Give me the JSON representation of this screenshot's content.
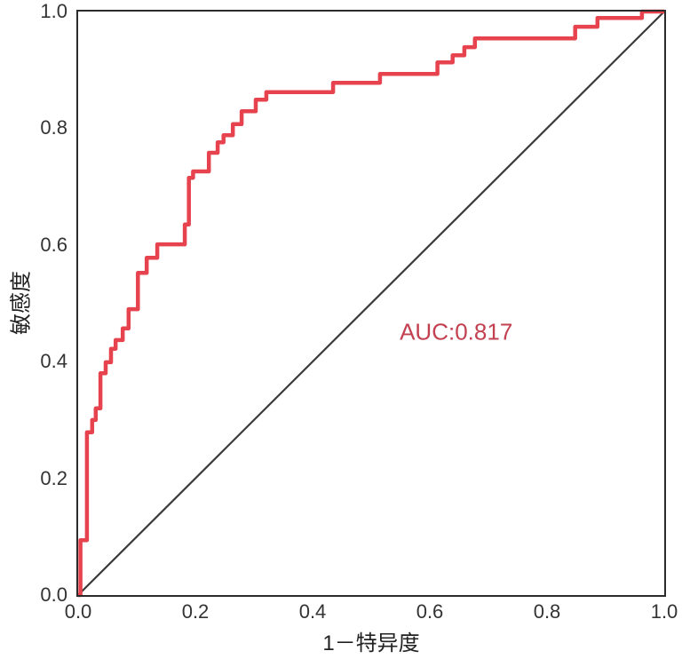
{
  "figure": {
    "background": "#ffffff",
    "spine_color": "#2b2b2b",
    "tick_label_color": "#333333",
    "axis_label_color": "#222222"
  },
  "chart_data": {
    "type": "line",
    "subtype": "roc-curve",
    "title": "",
    "xlabel": "1－特异度",
    "ylabel": "敏感度",
    "xlim": [
      0,
      1
    ],
    "ylim": [
      0,
      1
    ],
    "xticks": [
      "0.0",
      "0.2",
      "0.4",
      "0.6",
      "0.8",
      "1.0"
    ],
    "yticks": [
      "0.0",
      "0.2",
      "0.4",
      "0.6",
      "0.8",
      "1.0"
    ],
    "grid": false,
    "legend_position": "none",
    "auc_value": 0.817,
    "annotation": {
      "text": "AUC:0.817",
      "x": 0.645,
      "y": 0.45,
      "color": "#c2404f"
    },
    "series": [
      {
        "name": "ROC curve",
        "style": "step",
        "color": "#e6434f",
        "linewidth": 4.5,
        "points": [
          [
            0.0,
            0.0
          ],
          [
            0.004,
            0.0
          ],
          [
            0.004,
            0.094
          ],
          [
            0.015,
            0.094
          ],
          [
            0.015,
            0.279
          ],
          [
            0.024,
            0.279
          ],
          [
            0.024,
            0.3
          ],
          [
            0.03,
            0.3
          ],
          [
            0.03,
            0.32
          ],
          [
            0.038,
            0.32
          ],
          [
            0.038,
            0.38
          ],
          [
            0.047,
            0.38
          ],
          [
            0.047,
            0.399
          ],
          [
            0.056,
            0.399
          ],
          [
            0.056,
            0.422
          ],
          [
            0.064,
            0.422
          ],
          [
            0.064,
            0.437
          ],
          [
            0.076,
            0.437
          ],
          [
            0.076,
            0.457
          ],
          [
            0.086,
            0.457
          ],
          [
            0.086,
            0.49
          ],
          [
            0.102,
            0.49
          ],
          [
            0.102,
            0.552
          ],
          [
            0.117,
            0.552
          ],
          [
            0.117,
            0.578
          ],
          [
            0.135,
            0.578
          ],
          [
            0.135,
            0.601
          ],
          [
            0.182,
            0.601
          ],
          [
            0.182,
            0.635
          ],
          [
            0.189,
            0.635
          ],
          [
            0.189,
            0.715
          ],
          [
            0.196,
            0.715
          ],
          [
            0.196,
            0.726
          ],
          [
            0.223,
            0.726
          ],
          [
            0.223,
            0.758
          ],
          [
            0.238,
            0.758
          ],
          [
            0.238,
            0.776
          ],
          [
            0.248,
            0.776
          ],
          [
            0.248,
            0.788
          ],
          [
            0.264,
            0.788
          ],
          [
            0.264,
            0.807
          ],
          [
            0.279,
            0.807
          ],
          [
            0.279,
            0.829
          ],
          [
            0.303,
            0.829
          ],
          [
            0.303,
            0.849
          ],
          [
            0.321,
            0.849
          ],
          [
            0.321,
            0.862
          ],
          [
            0.435,
            0.862
          ],
          [
            0.435,
            0.878
          ],
          [
            0.515,
            0.878
          ],
          [
            0.515,
            0.893
          ],
          [
            0.613,
            0.893
          ],
          [
            0.613,
            0.913
          ],
          [
            0.639,
            0.913
          ],
          [
            0.639,
            0.925
          ],
          [
            0.659,
            0.925
          ],
          [
            0.659,
            0.939
          ],
          [
            0.677,
            0.939
          ],
          [
            0.677,
            0.954
          ],
          [
            0.848,
            0.954
          ],
          [
            0.848,
            0.974
          ],
          [
            0.886,
            0.974
          ],
          [
            0.886,
            0.989
          ],
          [
            0.962,
            0.989
          ],
          [
            0.962,
            1.0
          ],
          [
            1.0,
            1.0
          ]
        ]
      },
      {
        "name": "chance diagonal",
        "style": "line",
        "color": "#3a3a3a",
        "linewidth": 2.2,
        "points": [
          [
            0.0,
            0.0
          ],
          [
            1.0,
            1.0
          ]
        ]
      }
    ]
  }
}
